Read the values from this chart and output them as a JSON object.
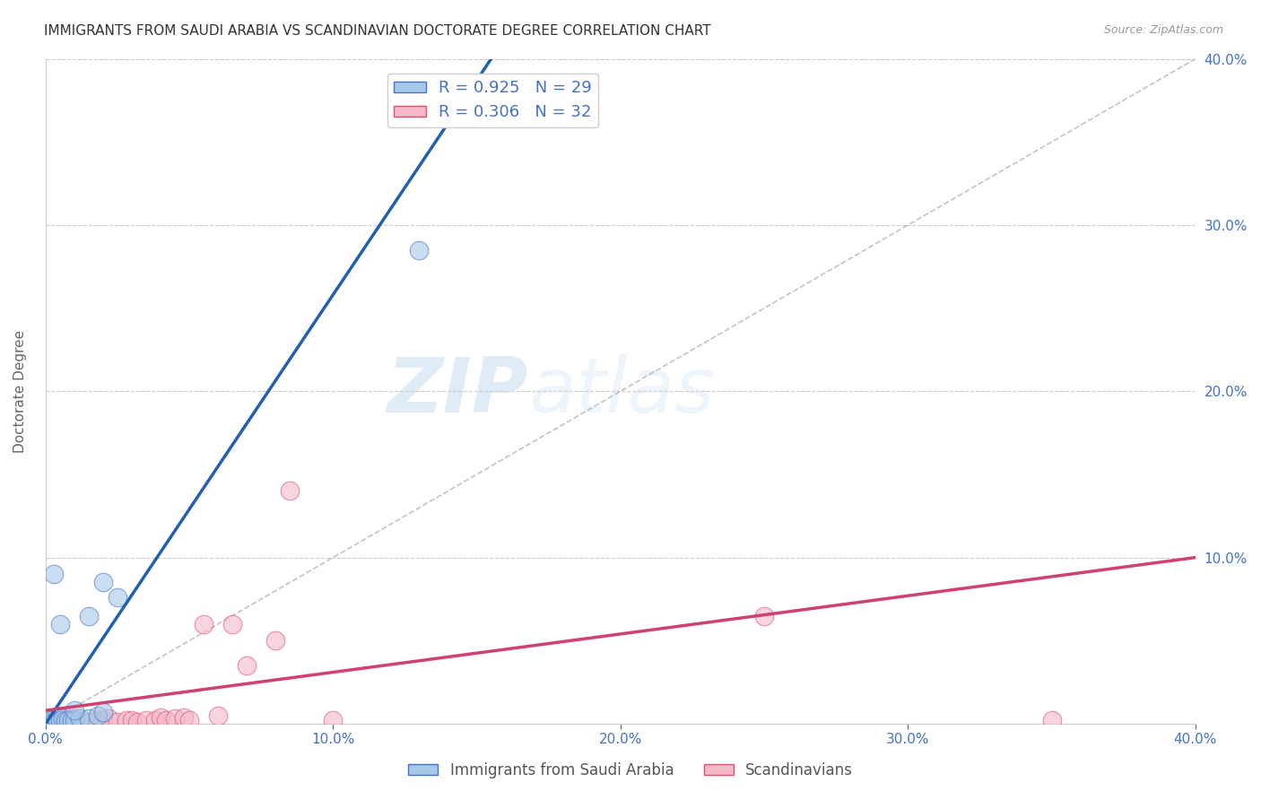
{
  "title": "IMMIGRANTS FROM SAUDI ARABIA VS SCANDINAVIAN DOCTORATE DEGREE CORRELATION CHART",
  "source": "Source: ZipAtlas.com",
  "ylabel": "Doctorate Degree",
  "xlim": [
    0.0,
    0.4
  ],
  "ylim": [
    0.0,
    0.4
  ],
  "xticks": [
    0.0,
    0.1,
    0.2,
    0.3,
    0.4
  ],
  "yticks": [
    0.1,
    0.2,
    0.3,
    0.4
  ],
  "xtick_labels": [
    "0.0%",
    "10.0%",
    "20.0%",
    "30.0%",
    "40.0%"
  ],
  "ytick_labels_right": [
    "10.0%",
    "20.0%",
    "30.0%",
    "40.0%"
  ],
  "blue_R": 0.925,
  "blue_N": 29,
  "pink_R": 0.306,
  "pink_N": 32,
  "blue_color": "#a8c8e8",
  "pink_color": "#f4b8c8",
  "blue_edge_color": "#4472c4",
  "pink_edge_color": "#e05070",
  "blue_line_color": "#2060b0",
  "pink_line_color": "#d04070",
  "blue_scatter": [
    [
      0.001,
      0.001
    ],
    [
      0.002,
      0.001
    ],
    [
      0.001,
      0.003
    ],
    [
      0.003,
      0.001
    ],
    [
      0.002,
      0.002
    ],
    [
      0.004,
      0.001
    ],
    [
      0.005,
      0.001
    ],
    [
      0.006,
      0.001
    ],
    [
      0.007,
      0.001
    ],
    [
      0.008,
      0.001
    ],
    [
      0.003,
      0.001
    ],
    [
      0.004,
      0.002
    ],
    [
      0.005,
      0.002
    ],
    [
      0.006,
      0.003
    ],
    [
      0.007,
      0.002
    ],
    [
      0.008,
      0.002
    ],
    [
      0.009,
      0.002
    ],
    [
      0.01,
      0.002
    ],
    [
      0.012,
      0.003
    ],
    [
      0.015,
      0.003
    ],
    [
      0.018,
      0.005
    ],
    [
      0.02,
      0.007
    ],
    [
      0.025,
      0.076
    ],
    [
      0.01,
      0.008
    ],
    [
      0.015,
      0.065
    ],
    [
      0.02,
      0.085
    ],
    [
      0.003,
      0.09
    ],
    [
      0.005,
      0.06
    ],
    [
      0.13,
      0.285
    ]
  ],
  "pink_scatter": [
    [
      0.001,
      0.001
    ],
    [
      0.002,
      0.002
    ],
    [
      0.003,
      0.001
    ],
    [
      0.005,
      0.001
    ],
    [
      0.006,
      0.002
    ],
    [
      0.008,
      0.002
    ],
    [
      0.01,
      0.003
    ],
    [
      0.012,
      0.001
    ],
    [
      0.015,
      0.001
    ],
    [
      0.018,
      0.002
    ],
    [
      0.02,
      0.002
    ],
    [
      0.022,
      0.003
    ],
    [
      0.025,
      0.001
    ],
    [
      0.028,
      0.002
    ],
    [
      0.03,
      0.002
    ],
    [
      0.032,
      0.001
    ],
    [
      0.035,
      0.002
    ],
    [
      0.038,
      0.002
    ],
    [
      0.04,
      0.004
    ],
    [
      0.042,
      0.002
    ],
    [
      0.045,
      0.003
    ],
    [
      0.048,
      0.004
    ],
    [
      0.05,
      0.002
    ],
    [
      0.055,
      0.06
    ],
    [
      0.06,
      0.005
    ],
    [
      0.065,
      0.06
    ],
    [
      0.07,
      0.035
    ],
    [
      0.08,
      0.05
    ],
    [
      0.085,
      0.14
    ],
    [
      0.1,
      0.002
    ],
    [
      0.25,
      0.065
    ],
    [
      0.35,
      0.002
    ]
  ],
  "blue_line_x": [
    0.0,
    0.155
  ],
  "blue_line_y": [
    0.0,
    0.4
  ],
  "pink_line_x": [
    0.0,
    0.4
  ],
  "pink_line_y": [
    0.008,
    0.1
  ],
  "diag_line_x": [
    0.0,
    0.4
  ],
  "diag_line_y": [
    0.0,
    0.4
  ],
  "watermark_zip": "ZIP",
  "watermark_atlas": "atlas",
  "title_fontsize": 11,
  "tick_color": "#4472c4",
  "background_color": "#ffffff"
}
